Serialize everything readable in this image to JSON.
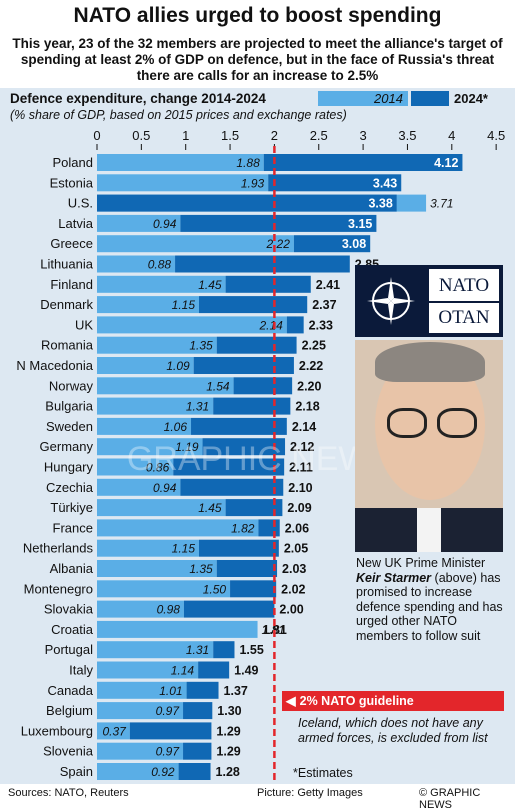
{
  "title": "NATO allies urged to boost spending",
  "subtitle": "This year, 23 of the 32 members are projected to meet the alliance's target of spending at least 2% of GDP on defence, but in the face of Russia's threat there are calls for an increase to 2.5%",
  "chart_heading": "Defence expenditure, change 2014-2024",
  "chart_note": "(% share of GDP, based on 2015 prices and exchange rates)",
  "legend": {
    "a": "2014",
    "b": "2024*"
  },
  "colors": {
    "bar2014": "#5aaee6",
    "bar2024": "#1068b4",
    "guideline": "#e3262b",
    "panel": "#dde8f2",
    "text": "#111111"
  },
  "guideline_label": "2% NATO guideline",
  "iceland_note": "Iceland, which does not have any armed forces, is excluded from list",
  "estimates_note": "*Estimates",
  "caption": {
    "before": "New UK Prime Minister",
    "name": "Keir Starmer",
    "after": "(above) has promised to increase defence spending and has urged other NATO members to follow suit"
  },
  "logo": {
    "line1": "NATO",
    "line2": "OTAN"
  },
  "watermark": "GRAPHIC NEWS",
  "footer": {
    "sources": "Sources: NATO, Reuters",
    "picture": "Picture: Getty Images",
    "credit": "© GRAPHIC NEWS"
  },
  "chart_data": {
    "type": "bar",
    "orientation": "horizontal",
    "title": "Defence expenditure, change 2014-2024",
    "xlim": [
      0,
      4.5
    ],
    "ticks": [
      0,
      0.5,
      1,
      1.5,
      2,
      2.5,
      3,
      3.5,
      4,
      4.5
    ],
    "tick_labels": [
      "0",
      "0.5",
      "1",
      "1.5",
      "2",
      "2.5",
      "3",
      "3.5",
      "4",
      "4.5"
    ],
    "reference_line": 2,
    "categories": [
      "Poland",
      "Estonia",
      "U.S.",
      "Latvia",
      "Greece",
      "Lithuania",
      "Finland",
      "Denmark",
      "UK",
      "Romania",
      "N Macedonia",
      "Norway",
      "Bulgaria",
      "Sweden",
      "Germany",
      "Hungary",
      "Czechia",
      "Türkiye",
      "France",
      "Netherlands",
      "Albania",
      "Montenegro",
      "Slovakia",
      "Croatia",
      "Portugal",
      "Italy",
      "Canada",
      "Belgium",
      "Luxembourg",
      "Slovenia",
      "Spain"
    ],
    "series": [
      {
        "name": "2014",
        "values": [
          1.88,
          1.93,
          3.71,
          0.94,
          2.22,
          0.88,
          1.45,
          1.15,
          2.14,
          1.35,
          1.09,
          1.54,
          1.31,
          1.06,
          1.19,
          0.86,
          0.94,
          1.45,
          1.82,
          1.15,
          1.35,
          1.5,
          0.98,
          1.81,
          1.31,
          1.14,
          1.01,
          0.97,
          0.37,
          0.97,
          0.92
        ]
      },
      {
        "name": "2024*",
        "values": [
          4.12,
          3.43,
          3.38,
          3.15,
          3.08,
          2.85,
          2.41,
          2.37,
          2.33,
          2.25,
          2.22,
          2.2,
          2.18,
          2.14,
          2.12,
          2.11,
          2.1,
          2.09,
          2.06,
          2.05,
          2.03,
          2.02,
          2.0,
          1.81,
          1.55,
          1.49,
          1.37,
          1.3,
          1.29,
          1.29,
          1.28
        ]
      }
    ],
    "labels_2014": [
      "1.88",
      "1.93",
      "3.71",
      "0.94",
      "2.22",
      "0.88",
      "1.45",
      "1.15",
      "2.14",
      "1.35",
      "1.09",
      "1.54",
      "1.31",
      "1.06",
      "1.19",
      "0.86",
      "0.94",
      "1.45",
      "1.82",
      "1.15",
      "1.35",
      "1.50",
      "0.98",
      "1.81",
      "1.31",
      "1.14",
      "1.01",
      "0.97",
      "0.37",
      "0.97",
      "0.92"
    ],
    "labels_2024": [
      "4.12",
      "3.43",
      "3.38",
      "3.15",
      "3.08",
      "2.85",
      "2.41",
      "2.37",
      "2.33",
      "2.25",
      "2.22",
      "2.20",
      "2.18",
      "2.14",
      "2.12",
      "2.11",
      "2.10",
      "2.09",
      "2.06",
      "2.05",
      "2.03",
      "2.02",
      "2.00",
      "1.81",
      "1.55",
      "1.49",
      "1.37",
      "1.30",
      "1.29",
      "1.29",
      "1.28"
    ]
  }
}
